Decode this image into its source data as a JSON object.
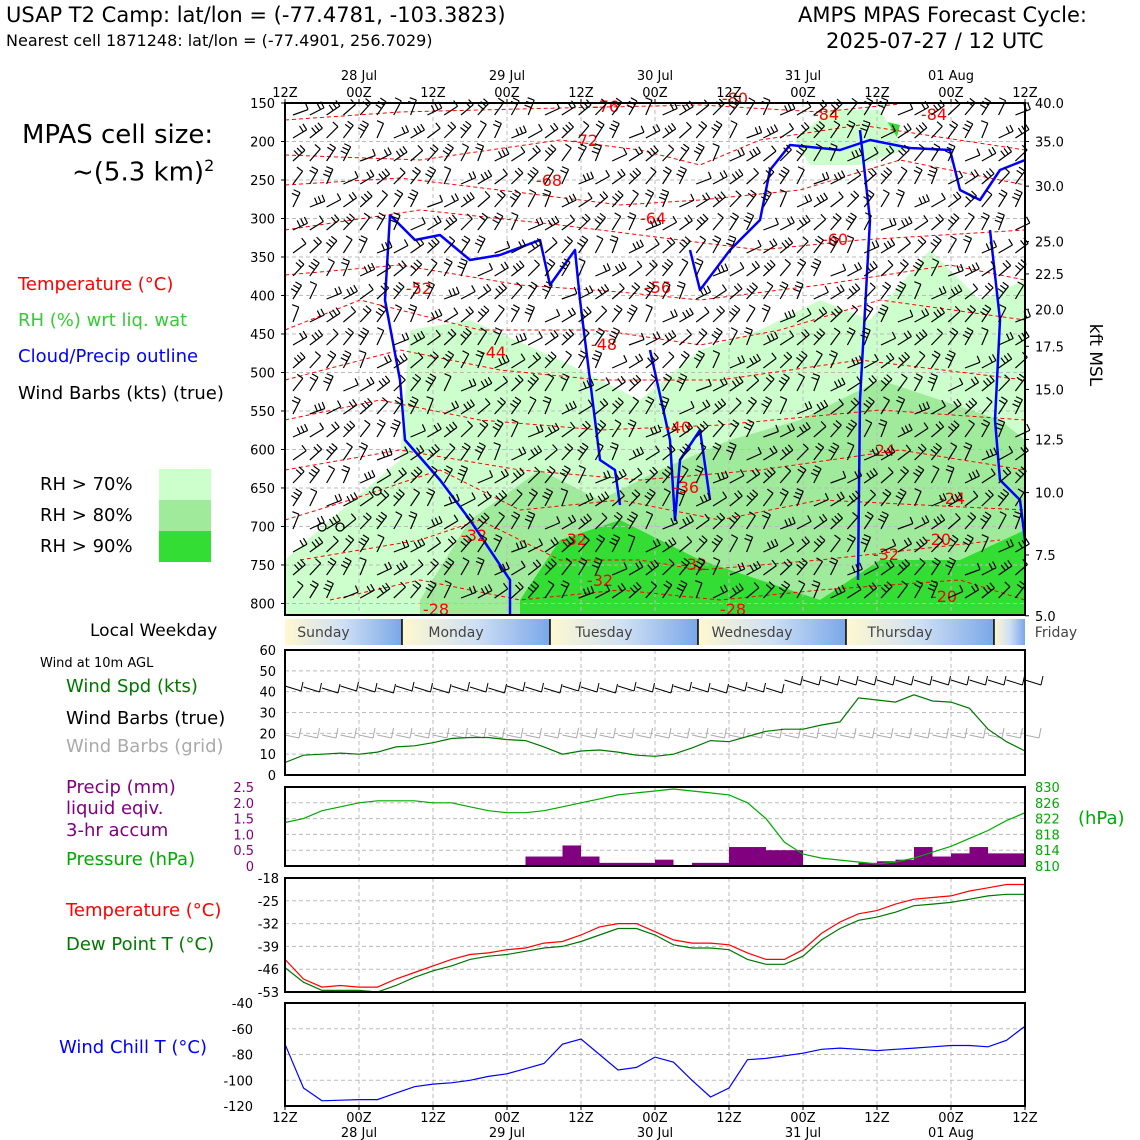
{
  "header": {
    "title_left": "USAP T2 Camp: lat/lon = (-77.4781, -103.3823)",
    "subtitle_left": "Nearest cell 1871248: lat/lon = (-77.4901, 256.7029)",
    "title_right_line1": "AMPS MPAS Forecast Cycle:",
    "title_right_line2": "2025-07-27 / 12 UTC"
  },
  "cell_size": {
    "line1": "MPAS cell size:",
    "line2": "~(5.3 km)",
    "exponent": "2"
  },
  "legend": {
    "temperature": "Temperature (°C)",
    "rh": "RH (%) wrt liq. wat",
    "cloud": "Cloud/Precip outline",
    "barbs": "Wind Barbs (kts) (true)",
    "rh70": "RH > 70%",
    "rh80": "RH > 80%",
    "rh90": "RH > 90%"
  },
  "colors": {
    "temperature": "#ff0000",
    "rh_label": "#33cc33",
    "cloud": "#0000ff",
    "rh70": "#ccffcc",
    "rh80": "#a0ea9c",
    "rh90": "#33dd33",
    "wind_speed": "#007700",
    "precip": "#800080",
    "pressure": "#00aa00",
    "dewpoint": "#007700",
    "windchill": "#0000ff",
    "grid_barbs": "#aaaaaa"
  },
  "time_axis": {
    "ticks": [
      "12Z",
      "00Z",
      "12Z",
      "00Z",
      "12Z",
      "00Z",
      "12Z",
      "00Z",
      "12Z",
      "00Z",
      "12Z"
    ],
    "dates": [
      "28 Jul",
      "29 Jul",
      "30 Jul",
      "31 Jul",
      "01 Aug"
    ]
  },
  "weekday": {
    "label": "Local Weekday",
    "days": [
      "Sunday",
      "Monday",
      "Tuesday",
      "Wednesday",
      "Thursday",
      "Friday"
    ]
  },
  "chart_data": [
    {
      "type": "heatmap",
      "name": "time-height cross section",
      "ylabel_right": "kft MSL",
      "pressure_levels_hPa": [
        150,
        200,
        250,
        300,
        350,
        400,
        450,
        500,
        550,
        600,
        650,
        700,
        750,
        800
      ],
      "height_ticks_kft": [
        "40.0",
        "35.0",
        "30.0",
        "25.0",
        "22.5",
        "20.0",
        "17.5",
        "15.0",
        "12.5",
        "10.0",
        "7.5",
        "5.0"
      ],
      "height_tick_pressure_hPa": [
        150,
        200,
        258,
        330,
        372,
        418,
        466,
        522,
        587,
        656,
        737,
        816
      ],
      "temperature_contour_labels_C": [
        "-76",
        "-80",
        "-84",
        "-84",
        "-72",
        "-68",
        "-64",
        "-60",
        "-56",
        "-52",
        "-48",
        "-44",
        "-40",
        "-36",
        "-32",
        "-32",
        "-32",
        "-32",
        "-28",
        "-28",
        "-24",
        "-24",
        "-20",
        "-20",
        "-32"
      ],
      "rh_thresholds": [
        "RH > 70%",
        "RH > 80%",
        "RH > 90%"
      ]
    },
    {
      "type": "line",
      "name": "Wind at 10m AGL",
      "title": "Wind at 10m AGL",
      "legend": [
        "Wind Spd (kts)",
        "Wind Barbs (true)",
        "Wind Barbs (grid)"
      ],
      "x_hours": [
        0,
        3,
        6,
        9,
        12,
        15,
        18,
        21,
        24,
        27,
        30,
        33,
        36,
        39,
        42,
        45,
        48,
        51,
        54,
        57,
        60,
        63,
        66,
        69,
        72,
        75,
        78,
        81,
        84,
        87,
        90,
        93,
        96,
        99,
        102,
        105,
        108,
        111,
        114,
        117,
        120
      ],
      "values": [
        6,
        9.5,
        10,
        10.5,
        10,
        11,
        13.5,
        14,
        15.5,
        17.5,
        18,
        18,
        17,
        16.5,
        13.5,
        10,
        11.5,
        12,
        11,
        9.5,
        9,
        10,
        13,
        16.5,
        16,
        18.5,
        21,
        22,
        22,
        24,
        25.5,
        37,
        36,
        35,
        38.5,
        35.5,
        35,
        32,
        22,
        16,
        11.5
      ],
      "yticks": [
        "0",
        "10",
        "20",
        "30",
        "40",
        "50",
        "60"
      ],
      "ylim": [
        0,
        60
      ]
    },
    {
      "type": "bar",
      "name": "Precip and Pressure",
      "legend": [
        "Precip (mm)",
        "liquid eqiv.",
        "3-hr accum",
        "Pressure (hPa)"
      ],
      "right_unit": "(hPa)",
      "x_hours": [
        0,
        3,
        6,
        9,
        12,
        15,
        18,
        21,
        24,
        27,
        30,
        33,
        36,
        39,
        42,
        45,
        48,
        51,
        54,
        57,
        60,
        63,
        66,
        69,
        72,
        75,
        78,
        81,
        84,
        87,
        90,
        93,
        96,
        99,
        102,
        105,
        108,
        111,
        114,
        117,
        120
      ],
      "precip_mm": [
        0,
        0,
        0,
        0,
        0,
        0,
        0,
        0,
        0,
        0,
        0,
        0,
        0,
        0.3,
        0.3,
        0.65,
        0.3,
        0.1,
        0.1,
        0.1,
        0.2,
        0,
        0.1,
        0.1,
        0.6,
        0.6,
        0.5,
        0.5,
        0,
        0,
        0,
        0.1,
        0.15,
        0.2,
        0.6,
        0.3,
        0.4,
        0.6,
        0.4,
        0.4,
        0
      ],
      "pressure_hPa": [
        821,
        822,
        824,
        825,
        826,
        826.5,
        826.5,
        826.5,
        826,
        826,
        825,
        824,
        823.5,
        823.5,
        824,
        825,
        826,
        827,
        828,
        828.5,
        829,
        829.5,
        829,
        828.5,
        828,
        826,
        822,
        816,
        813,
        812,
        811.5,
        811,
        810.5,
        811,
        812,
        813.5,
        815,
        817,
        819,
        821.5,
        823.5
      ],
      "precip_ticks": [
        "0",
        "0.5",
        "1.0",
        "1.5",
        "2.0",
        "2.5"
      ],
      "pressure_ticks": [
        "810",
        "814",
        "818",
        "822",
        "826",
        "830"
      ],
      "precip_ylim": [
        0,
        2.5
      ],
      "pressure_ylim": [
        810,
        830
      ]
    },
    {
      "type": "line",
      "name": "Temperature and Dew Point",
      "legend": [
        "Temperature (°C)",
        "Dew Point T (°C)"
      ],
      "x_hours": [
        0,
        3,
        6,
        9,
        12,
        15,
        18,
        21,
        24,
        27,
        30,
        33,
        36,
        39,
        42,
        45,
        48,
        51,
        54,
        57,
        60,
        63,
        66,
        69,
        72,
        75,
        78,
        81,
        84,
        87,
        90,
        93,
        96,
        99,
        102,
        105,
        108,
        111,
        114,
        117,
        120
      ],
      "series": [
        {
          "name": "Temperature (°C)",
          "values": [
            -43,
            -49,
            -51.5,
            -51,
            -51.5,
            -51.5,
            -49,
            -47,
            -45,
            -43,
            -41.5,
            -41,
            -40,
            -39.5,
            -38,
            -37.5,
            -35.5,
            -33,
            -32,
            -32,
            -34.5,
            -37,
            -38,
            -38,
            -38.5,
            -41,
            -43,
            -43,
            -40,
            -35,
            -31.5,
            -29,
            -28,
            -26,
            -24.5,
            -24,
            -23.5,
            -22,
            -21,
            -20,
            -20
          ]
        },
        {
          "name": "Dew Point T (°C)",
          "values": [
            -45.5,
            -50,
            -52.5,
            -52.5,
            -52.5,
            -53,
            -51,
            -48.5,
            -46.5,
            -45,
            -43,
            -42,
            -41.5,
            -40.5,
            -39.5,
            -39,
            -37.5,
            -35.5,
            -33.5,
            -33.5,
            -35.5,
            -38.5,
            -39.5,
            -39.5,
            -40,
            -43,
            -44.5,
            -44.5,
            -42,
            -37,
            -33.5,
            -31,
            -30,
            -28.5,
            -26.5,
            -26,
            -25.5,
            -24.5,
            -23.5,
            -23,
            -23
          ]
        }
      ],
      "yticks": [
        "-18",
        "-25",
        "-32",
        "-39",
        "-46",
        "-53"
      ],
      "ylim": [
        -53,
        -18
      ]
    },
    {
      "type": "line",
      "name": "Wind Chill",
      "legend": [
        "Wind Chill T (°C)"
      ],
      "x_hours": [
        0,
        3,
        6,
        9,
        12,
        15,
        18,
        21,
        24,
        27,
        30,
        33,
        36,
        39,
        42,
        45,
        48,
        51,
        54,
        57,
        60,
        63,
        66,
        69,
        72,
        75,
        78,
        81,
        84,
        87,
        90,
        93,
        96,
        99,
        102,
        105,
        108,
        111,
        114,
        117,
        120
      ],
      "values": [
        -72,
        -106,
        -116,
        -115.5,
        -115,
        -115,
        -110,
        -105,
        -103,
        -102,
        -100,
        -97,
        -95,
        -91,
        -87,
        -72,
        -68,
        -80,
        -92,
        -90,
        -82,
        -86,
        -100,
        -113,
        -106,
        -84,
        -83,
        -81,
        -79,
        -76,
        -75,
        -76,
        -77,
        -76,
        -75,
        -74,
        -73,
        -73,
        -74,
        -69,
        -58
      ],
      "yticks": [
        "-40",
        "-60",
        "-80",
        "-100",
        "-120"
      ],
      "ylim": [
        -120,
        -40
      ]
    }
  ]
}
